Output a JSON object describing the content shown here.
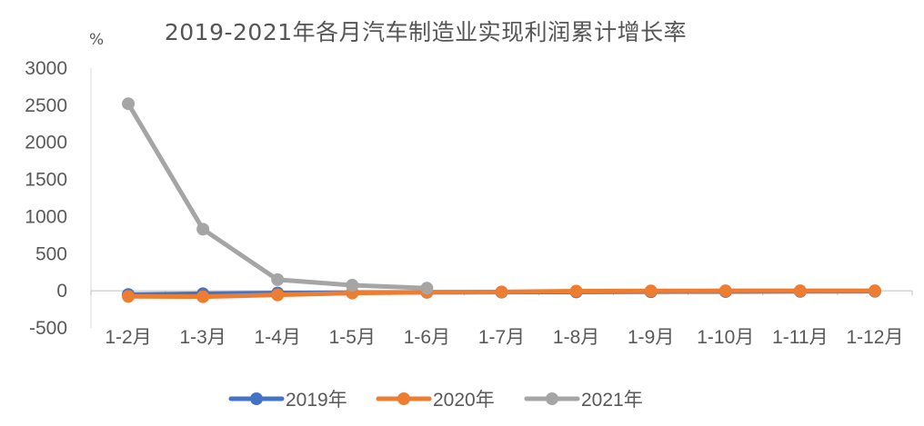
{
  "chart_data": {
    "type": "line",
    "title": "2019-2021年各月汽车制造业实现利润累计增长率",
    "ylabel": "%",
    "xlabel": "",
    "ylim": [
      -500,
      3000
    ],
    "yticks": [
      -500,
      0,
      500,
      1000,
      1500,
      2000,
      2500,
      3000
    ],
    "categories": [
      "1-2月",
      "1-3月",
      "1-4月",
      "1-5月",
      "1-6月",
      "1-7月",
      "1-8月",
      "1-9月",
      "1-10月",
      "1-11月",
      "1-12月"
    ],
    "grid": false,
    "legend_position": "bottom",
    "series": [
      {
        "name": "2019年",
        "color": "#4472C4",
        "values": [
          -50,
          -40,
          -30,
          -25,
          -20,
          -18,
          -15,
          -12,
          -10,
          -8,
          -6
        ]
      },
      {
        "name": "2020年",
        "color": "#ED7D31",
        "values": [
          -75,
          -80,
          -55,
          -30,
          -20,
          -15,
          -5,
          -2,
          0,
          0,
          0
        ]
      },
      {
        "name": "2021年",
        "color": "#A5A5A5",
        "values": [
          2520,
          830,
          150,
          75,
          35,
          null,
          null,
          null,
          null,
          null,
          null
        ]
      }
    ]
  }
}
